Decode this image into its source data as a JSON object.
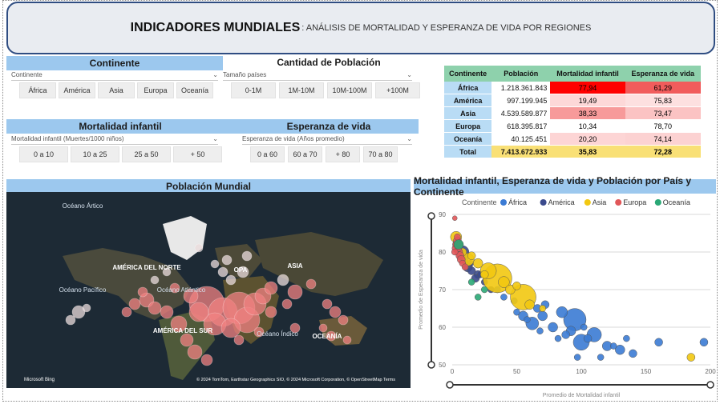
{
  "title": {
    "main": "INDICADORES MUNDIALES",
    "sub": ": ANÁLISIS DE MORTALIDAD Y ESPERANZA DE VIDA POR REGIONES"
  },
  "continente": {
    "header": "Continente",
    "dropdown": "Continente",
    "options": [
      "África",
      "América",
      "Asia",
      "Europa",
      "Oceanía"
    ]
  },
  "poblacion": {
    "header": "Cantidad de Población",
    "dropdown": "Tamaño países",
    "options": [
      "0-1M",
      "1M-10M",
      "10M-100M",
      "+100M"
    ]
  },
  "mortalidad": {
    "header": "Mortalidad infantil",
    "dropdown": "Mortalidad infantil (Muertes/1000 niños)",
    "options": [
      "0 a 10",
      "10 a 25",
      "25 a 50",
      "+ 50"
    ]
  },
  "esperanza": {
    "header": "Esperanza de vida",
    "dropdown": "Esperanza de vida (Años promedio)",
    "options": [
      "0 a 60",
      "60 a 70",
      "+ 80",
      "70 a 80"
    ]
  },
  "table": {
    "headers": [
      "Continente",
      "Población",
      "Mortalidad infantil",
      "Esperanza de vida"
    ],
    "rows": [
      {
        "c": "África",
        "p": "1.218.361.843",
        "m": "77,94",
        "e": "61,29",
        "mcolor": "#ff0000",
        "ecolor": "#f15c5c"
      },
      {
        "c": "América",
        "p": "997.199.945",
        "m": "19,49",
        "e": "75,83",
        "mcolor": "#fdd8d8",
        "ecolor": "#fde0e0"
      },
      {
        "c": "Asia",
        "p": "4.539.589.877",
        "m": "38,33",
        "e": "73,47",
        "mcolor": "#f79a9a",
        "ecolor": "#fbc3c3"
      },
      {
        "c": "Europa",
        "p": "618.395.817",
        "m": "10,34",
        "e": "78,70",
        "mcolor": "#ffffff",
        "ecolor": "#ffffff"
      },
      {
        "c": "Oceanía",
        "p": "40.125.451",
        "m": "20,20",
        "e": "74,14",
        "mcolor": "#fdd5d5",
        "ecolor": "#fcd2d2"
      }
    ],
    "total": {
      "c": "Total",
      "p": "7.413.672.933",
      "m": "35,83",
      "e": "72,28"
    }
  },
  "map": {
    "header": "Población Mundial",
    "labels": [
      "Océano Ártico",
      "AMÉRICA DEL NORTE",
      "ASIA",
      "Océano Pacífico",
      "Océano Atlántico",
      "AMÉRICA DEL SUR",
      "Océano Índico",
      "OCEANÍA",
      "OPA"
    ],
    "copyright": "© 2024 TomTom, Earthstar Geographics SIO, © 2024 Microsoft Corporation, © OpenStreetMap  Terms",
    "brand": "Microsoft Bing"
  },
  "chart_data": {
    "type": "scatter",
    "title": "Mortalidad infantil, Esperanza de vida y Población por País y Continente",
    "legend_title": "Continente",
    "legend_position": "top",
    "xlabel": "Promedio de Mortalidad infantil",
    "ylabel": "Promedio de Esperanza de vida",
    "xlim": [
      0,
      200
    ],
    "ylim": [
      50,
      90
    ],
    "xticks": [
      0,
      50,
      100,
      150,
      200
    ],
    "yticks": [
      50,
      60,
      70,
      80,
      90
    ],
    "grid": true,
    "colors": {
      "África": "#3b7bd4",
      "América": "#3a4a8c",
      "Asia": "#f2c811",
      "Europa": "#e15759",
      "Oceanía": "#2aa876"
    },
    "series": [
      {
        "name": "África",
        "points": [
          [
            95,
            62
          ],
          [
            100,
            56
          ],
          [
            110,
            58
          ],
          [
            62,
            61
          ],
          [
            85,
            64
          ],
          [
            70,
            63
          ],
          [
            120,
            55
          ],
          [
            130,
            54
          ],
          [
            55,
            63
          ],
          [
            78,
            60
          ],
          [
            92,
            59
          ],
          [
            105,
            57
          ],
          [
            140,
            53
          ],
          [
            160,
            56
          ],
          [
            195,
            56
          ],
          [
            72,
            66
          ],
          [
            66,
            65
          ],
          [
            88,
            58
          ],
          [
            48,
            67
          ],
          [
            40,
            68
          ],
          [
            115,
            52
          ],
          [
            125,
            55
          ],
          [
            58,
            62
          ],
          [
            82,
            57
          ],
          [
            102,
            60
          ],
          [
            50,
            64
          ],
          [
            35,
            70
          ],
          [
            97,
            52
          ],
          [
            68,
            59
          ],
          [
            135,
            57
          ]
        ],
        "sizes": [
          14,
          10,
          9,
          8,
          7,
          6,
          6,
          6,
          6,
          6,
          6,
          5,
          5,
          5,
          5,
          5,
          5,
          5,
          4,
          4,
          4,
          4,
          4,
          4,
          4,
          4,
          4,
          4,
          4,
          4
        ]
      },
      {
        "name": "América",
        "points": [
          [
            8,
            80
          ],
          [
            12,
            76
          ],
          [
            15,
            75
          ],
          [
            20,
            74
          ],
          [
            18,
            73
          ],
          [
            25,
            72
          ],
          [
            10,
            78
          ],
          [
            6,
            79
          ],
          [
            30,
            70
          ],
          [
            22,
            74
          ],
          [
            14,
            77
          ],
          [
            5,
            81
          ]
        ],
        "sizes": [
          8,
          6,
          5,
          5,
          5,
          4,
          4,
          4,
          4,
          4,
          4,
          4
        ]
      },
      {
        "name": "Asia",
        "points": [
          [
            35,
            73
          ],
          [
            55,
            68
          ],
          [
            28,
            75
          ],
          [
            12,
            78
          ],
          [
            3,
            84
          ],
          [
            40,
            72
          ],
          [
            45,
            70
          ],
          [
            20,
            77
          ],
          [
            60,
            66
          ],
          [
            25,
            74
          ],
          [
            8,
            80
          ],
          [
            50,
            71
          ],
          [
            15,
            79
          ],
          [
            70,
            65
          ],
          [
            185,
            52
          ]
        ],
        "sizes": [
          18,
          16,
          10,
          8,
          7,
          7,
          6,
          6,
          6,
          5,
          5,
          5,
          5,
          4,
          5
        ]
      },
      {
        "name": "Europa",
        "points": [
          [
            4,
            82
          ],
          [
            3,
            81
          ],
          [
            5,
            80
          ],
          [
            6,
            79
          ],
          [
            4,
            83
          ],
          [
            7,
            78
          ],
          [
            3,
            82
          ],
          [
            5,
            81
          ],
          [
            8,
            77
          ],
          [
            2,
            80
          ],
          [
            6,
            82
          ],
          [
            10,
            76
          ],
          [
            4,
            84
          ],
          [
            2,
            89
          ]
        ],
        "sizes": [
          6,
          5,
          5,
          5,
          5,
          5,
          4,
          4,
          4,
          4,
          4,
          4,
          4,
          3
        ]
      },
      {
        "name": "Oceanía",
        "points": [
          [
            5,
            82
          ],
          [
            15,
            72
          ],
          [
            25,
            70
          ],
          [
            20,
            68
          ]
        ],
        "sizes": [
          6,
          4,
          4,
          4
        ]
      }
    ]
  }
}
